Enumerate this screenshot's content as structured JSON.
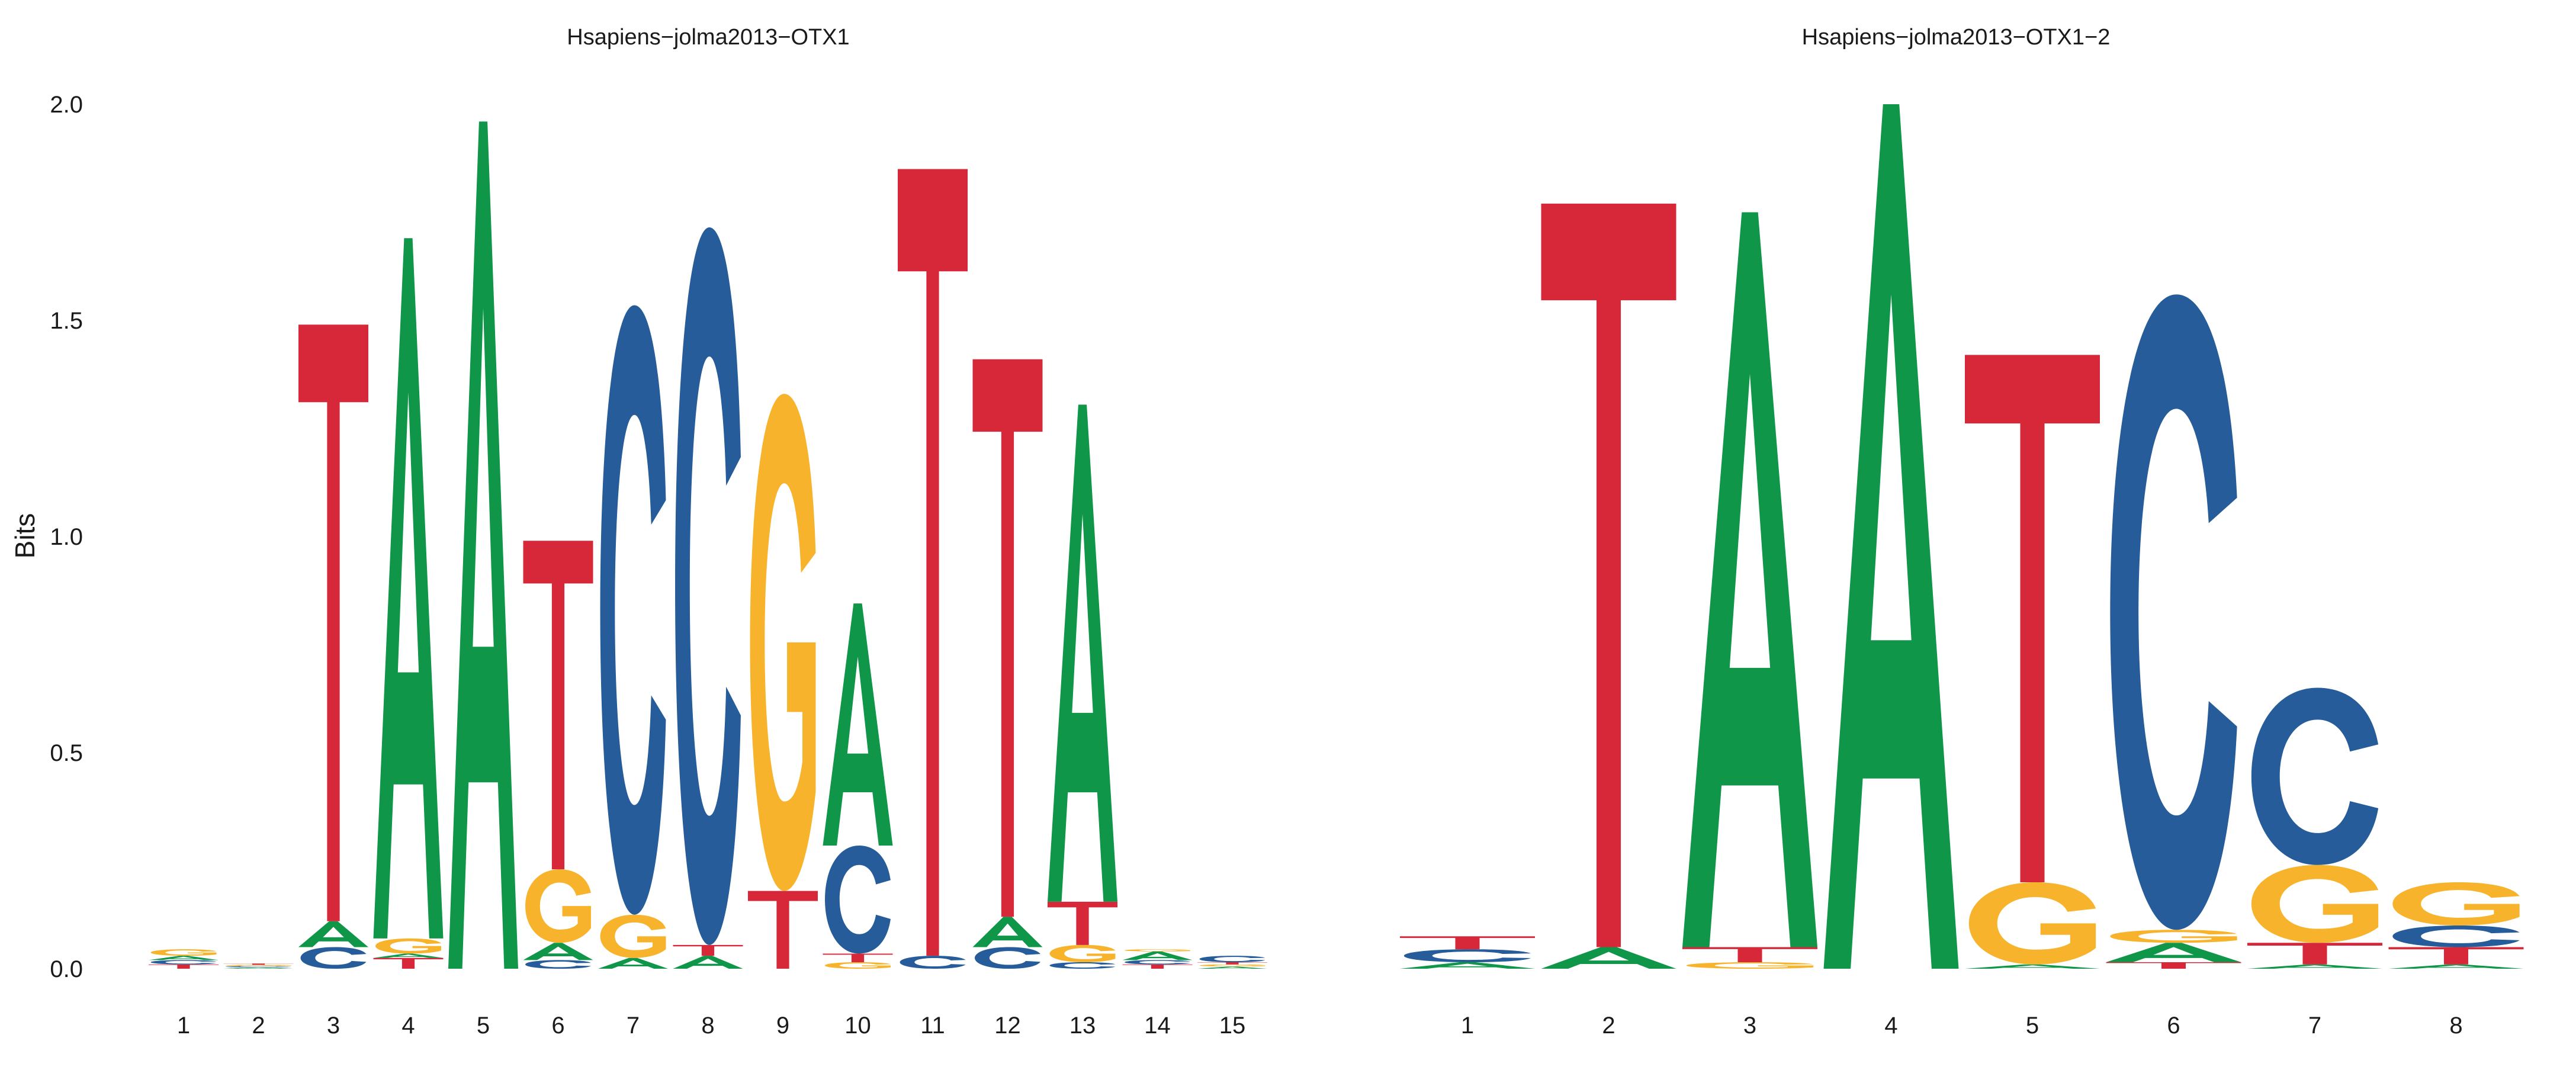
{
  "chart_data": {
    "type": "sequence-logo",
    "ylabel": "Bits",
    "ylim": [
      0,
      2.0
    ],
    "yticks": [
      "0.0",
      "0.5",
      "1.0",
      "1.5",
      "2.0"
    ],
    "grid": false,
    "colors": {
      "A": "#109648",
      "C": "#255C99",
      "G": "#F7B32B",
      "T": "#D62839"
    },
    "panels": [
      {
        "title": "Hsapiens−jolma2013−OTX1",
        "positions": [
          [
            [
              "T",
              0.01
            ],
            [
              "C",
              0.01
            ],
            [
              "A",
              0.01
            ],
            [
              "G",
              0.015
            ]
          ],
          [
            [
              "A",
              0.003
            ],
            [
              "C",
              0.003
            ],
            [
              "G",
              0.003
            ],
            [
              "T",
              0.003
            ]
          ],
          [
            [
              "C",
              0.05
            ],
            [
              "A",
              0.06
            ],
            [
              "T",
              1.38
            ]
          ],
          [
            [
              "T",
              0.025
            ],
            [
              "A",
              0.01
            ],
            [
              "G",
              0.035
            ],
            [
              "A",
              1.62
            ]
          ],
          [
            [
              "A",
              1.96
            ]
          ],
          [
            [
              "C",
              0.02
            ],
            [
              "A",
              0.04
            ],
            [
              "G",
              0.17
            ],
            [
              "T",
              0.76
            ]
          ],
          [
            [
              "A",
              0.025
            ],
            [
              "G",
              0.1
            ],
            [
              "C",
              1.41
            ]
          ],
          [
            [
              "A",
              0.03
            ],
            [
              "T",
              0.025
            ],
            [
              "C",
              1.66
            ]
          ],
          [
            [
              "T",
              0.18
            ],
            [
              "G",
              1.15
            ]
          ],
          [
            [
              "G",
              0.015
            ],
            [
              "T",
              0.02
            ],
            [
              "C",
              0.25
            ],
            [
              "A",
              0.56
            ]
          ],
          [
            [
              "C",
              0.03
            ],
            [
              "T",
              1.82
            ]
          ],
          [
            [
              "C",
              0.05
            ],
            [
              "A",
              0.07
            ],
            [
              "T",
              1.29
            ]
          ],
          [
            [
              "C",
              0.015
            ],
            [
              "G",
              0.04
            ],
            [
              "T",
              0.1
            ],
            [
              "A",
              1.15
            ]
          ],
          [
            [
              "T",
              0.01
            ],
            [
              "C",
              0.01
            ],
            [
              "A",
              0.02
            ],
            [
              "G",
              0.005
            ]
          ],
          [
            [
              "A",
              0.005
            ],
            [
              "G",
              0.005
            ],
            [
              "T",
              0.005
            ],
            [
              "C",
              0.015
            ]
          ]
        ]
      },
      {
        "title": "Hsapiens−jolma2013−OTX1−2",
        "positions": [
          [
            [
              "A",
              0.015
            ],
            [
              "C",
              0.03
            ],
            [
              "T",
              0.03
            ]
          ],
          [
            [
              "A",
              0.05
            ],
            [
              "T",
              1.72
            ]
          ],
          [
            [
              "G",
              0.015
            ],
            [
              "T",
              0.035
            ],
            [
              "A",
              1.7
            ]
          ],
          [
            [
              "A",
              2.0
            ]
          ],
          [
            [
              "A",
              0.01
            ],
            [
              "G",
              0.19
            ],
            [
              "T",
              1.22
            ]
          ],
          [
            [
              "T",
              0.015
            ],
            [
              "A",
              0.045
            ],
            [
              "G",
              0.03
            ],
            [
              "C",
              1.47
            ]
          ],
          [
            [
              "A",
              0.01
            ],
            [
              "T",
              0.05
            ],
            [
              "G",
              0.18
            ],
            [
              "C",
              0.41
            ]
          ],
          [
            [
              "A",
              0.01
            ],
            [
              "T",
              0.04
            ],
            [
              "C",
              0.05
            ],
            [
              "G",
              0.1
            ]
          ]
        ]
      }
    ]
  }
}
